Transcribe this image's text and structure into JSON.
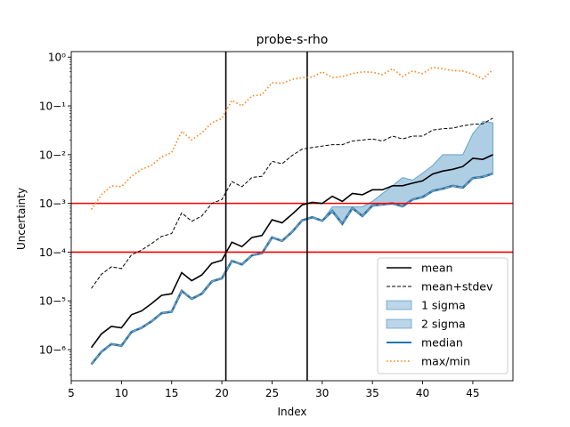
{
  "chart_data": {
    "type": "line",
    "title": "probe-s-rho",
    "xlabel": "Index",
    "ylabel": "Uncertainty",
    "yscale": "log",
    "xlim": [
      5,
      49
    ],
    "ylim": [
      2.3e-07,
      1.3
    ],
    "xticks": [
      5,
      10,
      15,
      20,
      25,
      30,
      35,
      40,
      45
    ],
    "x": [
      7,
      8,
      9,
      10,
      11,
      12,
      13,
      14,
      15,
      16,
      17,
      18,
      19,
      20,
      21,
      22,
      23,
      24,
      25,
      26,
      27,
      28,
      29,
      30,
      31,
      32,
      33,
      34,
      35,
      36,
      37,
      38,
      39,
      40,
      41,
      42,
      43,
      44,
      45,
      46,
      47
    ],
    "vlines": [
      20.4,
      28.5
    ],
    "hlines": [
      0.001,
      0.0001
    ],
    "legend_position": "lower right",
    "grid": false,
    "colors": {
      "mean": "#000000",
      "mean_stdev": "#000000",
      "band": "#1f77b4",
      "median": "#1f77b4",
      "maxmin": "#ff7f0e",
      "hline": "#ff0000",
      "vline": "#000000"
    },
    "series": [
      {
        "name": "mean",
        "style": "solid",
        "values": [
          1.1e-06,
          2.1e-06,
          3e-06,
          2.8e-06,
          5.2e-06,
          6.2e-06,
          8.8e-06,
          1.3e-05,
          1.4e-05,
          3.8e-05,
          2.6e-05,
          3.4e-05,
          5.9e-05,
          6.8e-05,
          0.00016,
          0.00013,
          0.0002,
          0.00022,
          0.00046,
          0.0004,
          0.0006,
          0.00093,
          0.00105,
          0.001,
          0.0014,
          0.0011,
          0.0016,
          0.0015,
          0.0019,
          0.0019,
          0.0023,
          0.0023,
          0.0026,
          0.0029,
          0.004,
          0.0046,
          0.005,
          0.0057,
          0.0084,
          0.008,
          0.01
        ]
      },
      {
        "name": "mean+stdev",
        "style": "dashed",
        "values": [
          1.8e-05,
          3.5e-05,
          5e-05,
          4.6e-05,
          8.8e-05,
          0.00011,
          0.00015,
          0.00021,
          0.00024,
          0.00064,
          0.00043,
          0.00055,
          0.001,
          0.0012,
          0.0028,
          0.0022,
          0.0034,
          0.0036,
          0.0073,
          0.0065,
          0.0096,
          0.013,
          0.014,
          0.015,
          0.016,
          0.016,
          0.019,
          0.02,
          0.021,
          0.019,
          0.024,
          0.021,
          0.024,
          0.024,
          0.032,
          0.034,
          0.035,
          0.039,
          0.042,
          0.043,
          0.056
        ]
      },
      {
        "name": "1 sigma",
        "style": "band",
        "lower": [
          5e-07,
          9e-07,
          1.3e-06,
          1.2e-06,
          2.3e-06,
          2.8e-06,
          3.8e-06,
          5.6e-06,
          6e-06,
          1.6e-05,
          1.1e-05,
          1.4e-05,
          2.5e-05,
          2.9e-05,
          6.6e-05,
          5.6e-05,
          8.6e-05,
          9.5e-05,
          0.0002,
          0.00017,
          0.00026,
          0.00045,
          0.00052,
          0.00044,
          0.00065,
          0.00038,
          0.0008,
          0.00055,
          0.0009,
          0.00095,
          0.001,
          0.00087,
          0.0012,
          0.00135,
          0.0018,
          0.002,
          0.0023,
          0.0021,
          0.0033,
          0.0035,
          0.0041
        ],
        "upper": [
          5e-07,
          9e-07,
          1.3e-06,
          1.2e-06,
          2.3e-06,
          2.8e-06,
          3.8e-06,
          5.6e-06,
          6e-06,
          1.6e-05,
          1.1e-05,
          1.4e-05,
          2.5e-05,
          2.9e-05,
          6.6e-05,
          5.6e-05,
          8.6e-05,
          9.5e-05,
          0.0002,
          0.00017,
          0.00026,
          0.00045,
          0.00052,
          0.00044,
          0.00085,
          0.00085,
          0.00085,
          0.00085,
          0.0011,
          0.0016,
          0.0023,
          0.0034,
          0.003,
          0.0042,
          0.006,
          0.01,
          0.01,
          0.01,
          0.027,
          0.048,
          0.045
        ]
      },
      {
        "name": "2 sigma",
        "style": "band",
        "lower": [
          5e-07,
          9e-07,
          1.3e-06,
          1.2e-06,
          2.3e-06,
          2.8e-06,
          3.8e-06,
          5.6e-06,
          6e-06,
          1.6e-05,
          1.1e-05,
          1.4e-05,
          2.5e-05,
          2.9e-05,
          6.6e-05,
          5.6e-05,
          8.6e-05,
          9.5e-05,
          0.0002,
          0.00017,
          0.00026,
          0.00045,
          0.00052,
          0.00044,
          0.00065,
          0.00038,
          0.0008,
          0.00055,
          0.0009,
          0.00095,
          0.001,
          0.00087,
          0.0012,
          0.00135,
          0.0018,
          0.002,
          0.0023,
          0.0021,
          0.0033,
          0.0035,
          0.0041
        ],
        "upper": [
          5e-07,
          9e-07,
          1.3e-06,
          1.2e-06,
          2.3e-06,
          2.8e-06,
          3.8e-06,
          5.6e-06,
          6e-06,
          1.6e-05,
          1.1e-05,
          1.4e-05,
          2.5e-05,
          2.9e-05,
          6.6e-05,
          5.6e-05,
          8.6e-05,
          9.5e-05,
          0.0002,
          0.00017,
          0.00026,
          0.00045,
          0.00052,
          0.00044,
          0.00085,
          0.00085,
          0.00085,
          0.00085,
          0.0011,
          0.0016,
          0.0023,
          0.0034,
          0.003,
          0.0042,
          0.006,
          0.01,
          0.01,
          0.01,
          0.027,
          0.048,
          0.045
        ]
      },
      {
        "name": "median",
        "style": "solid",
        "values": [
          5e-07,
          9e-07,
          1.3e-06,
          1.2e-06,
          2.3e-06,
          2.8e-06,
          3.8e-06,
          5.6e-06,
          6e-06,
          1.6e-05,
          1.1e-05,
          1.4e-05,
          2.5e-05,
          2.9e-05,
          6.6e-05,
          5.6e-05,
          8.6e-05,
          9.5e-05,
          0.0002,
          0.00017,
          0.00026,
          0.00045,
          0.00052,
          0.00044,
          0.0007,
          0.00038,
          0.0008,
          0.00055,
          0.0009,
          0.00095,
          0.001,
          0.00087,
          0.0012,
          0.00135,
          0.0018,
          0.002,
          0.0023,
          0.0021,
          0.0033,
          0.0035,
          0.0041
        ]
      },
      {
        "name": "max/min",
        "style": "dotted",
        "values": [
          0.00075,
          0.0015,
          0.0023,
          0.0022,
          0.0036,
          0.005,
          0.006,
          0.009,
          0.011,
          0.03,
          0.02,
          0.028,
          0.045,
          0.055,
          0.13,
          0.1,
          0.16,
          0.17,
          0.3,
          0.29,
          0.35,
          0.38,
          0.39,
          0.5,
          0.38,
          0.4,
          0.46,
          0.5,
          0.49,
          0.44,
          0.58,
          0.4,
          0.52,
          0.46,
          0.62,
          0.58,
          0.53,
          0.52,
          0.45,
          0.36,
          0.55
        ]
      }
    ]
  }
}
